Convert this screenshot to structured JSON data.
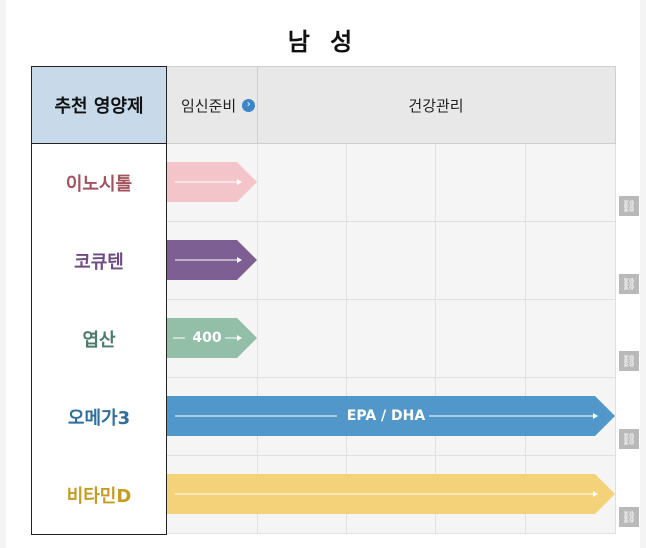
{
  "title": "남 성",
  "header": {
    "column_label": "추천 영양제",
    "phase_1": "임신준비",
    "phase_1_icon": "circle-arrow-icon",
    "phase_2": "건강관리"
  },
  "rows": [
    {
      "label": "이노시톨",
      "label_color": "#a3525f",
      "bar_color": "#f3c4c9",
      "span": "phase_1",
      "bar_text": ""
    },
    {
      "label": "코큐텐",
      "label_color": "#6e4b84",
      "bar_color": "#7e5f93",
      "span": "phase_1",
      "bar_text": ""
    },
    {
      "label": "엽산",
      "label_color": "#4d7b6a",
      "bar_color": "#93bfa8",
      "span": "phase_1",
      "bar_text": "400"
    },
    {
      "label": "오메가3",
      "label_color": "#2f6f9b",
      "bar_color": "#5197c9",
      "span": "all",
      "bar_text": "EPA / DHA"
    },
    {
      "label": "비타민D",
      "label_color": "#c69b22",
      "bar_color": "#f4d27a",
      "span": "all",
      "bar_text": ""
    }
  ],
  "link_icon": "link-icon"
}
